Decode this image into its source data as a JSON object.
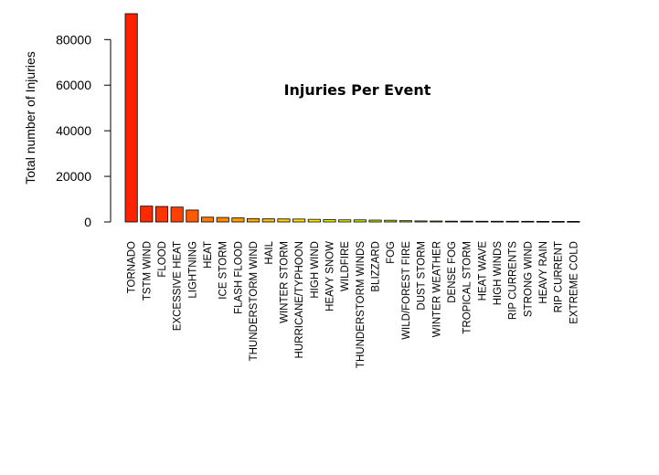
{
  "chart_data": {
    "type": "bar",
    "title": "Injuries Per Event",
    "ylabel": "Total number of Injuries",
    "xlabel": "",
    "ylim": [
      0,
      91346
    ],
    "y_ticks": [
      0,
      20000,
      40000,
      60000,
      80000
    ],
    "y_tick_labels": [
      "0",
      "20000",
      "40000",
      "60000",
      "80000"
    ],
    "grid": false,
    "categories": [
      "TORNADO",
      "TSTM WIND",
      "FLOOD",
      "EXCESSIVE HEAT",
      "LIGHTNING",
      "HEAT",
      "ICE STORM",
      "FLASH FLOOD",
      "THUNDERSTORM WIND",
      "HAIL",
      "WINTER STORM",
      "HURRICANE/TYPHOON",
      "HIGH WIND",
      "HEAVY SNOW",
      "WILDFIRE",
      "THUNDERSTORM WINDS",
      "BLIZZARD",
      "FOG",
      "WILD/FOREST FIRE",
      "DUST STORM",
      "WINTER WEATHER",
      "DENSE FOG",
      "TROPICAL STORM",
      "HEAT WAVE",
      "HIGH WINDS",
      "RIP CURRENTS",
      "STRONG WIND",
      "HEAVY RAIN",
      "RIP CURRENT",
      "EXTREME COLD"
    ],
    "values": [
      91346,
      6957,
      6789,
      6525,
      5230,
      2100,
      1975,
      1777,
      1488,
      1361,
      1321,
      1275,
      1137,
      1021,
      911,
      908,
      805,
      734,
      545,
      440,
      398,
      342,
      340,
      309,
      302,
      297,
      280,
      251,
      232,
      231
    ],
    "colors": [
      "#ff2200",
      "#ff2a00",
      "#ff3300",
      "#ff4000",
      "#ff5a00",
      "#ff7a00",
      "#ff8800",
      "#ff9a00",
      "#ffaa00",
      "#ffbb00",
      "#ffcc00",
      "#ffdd00",
      "#ffee00",
      "#f3f300",
      "#e6f300",
      "#d9f000",
      "#ccee00",
      "#bfee00",
      "#b3ea00",
      "#a6e800",
      "#99e600",
      "#8ce300",
      "#80e000",
      "#73dd00",
      "#66da00",
      "#59d700",
      "#4dd400",
      "#40d100",
      "#33ce00",
      "#26cc00"
    ]
  }
}
